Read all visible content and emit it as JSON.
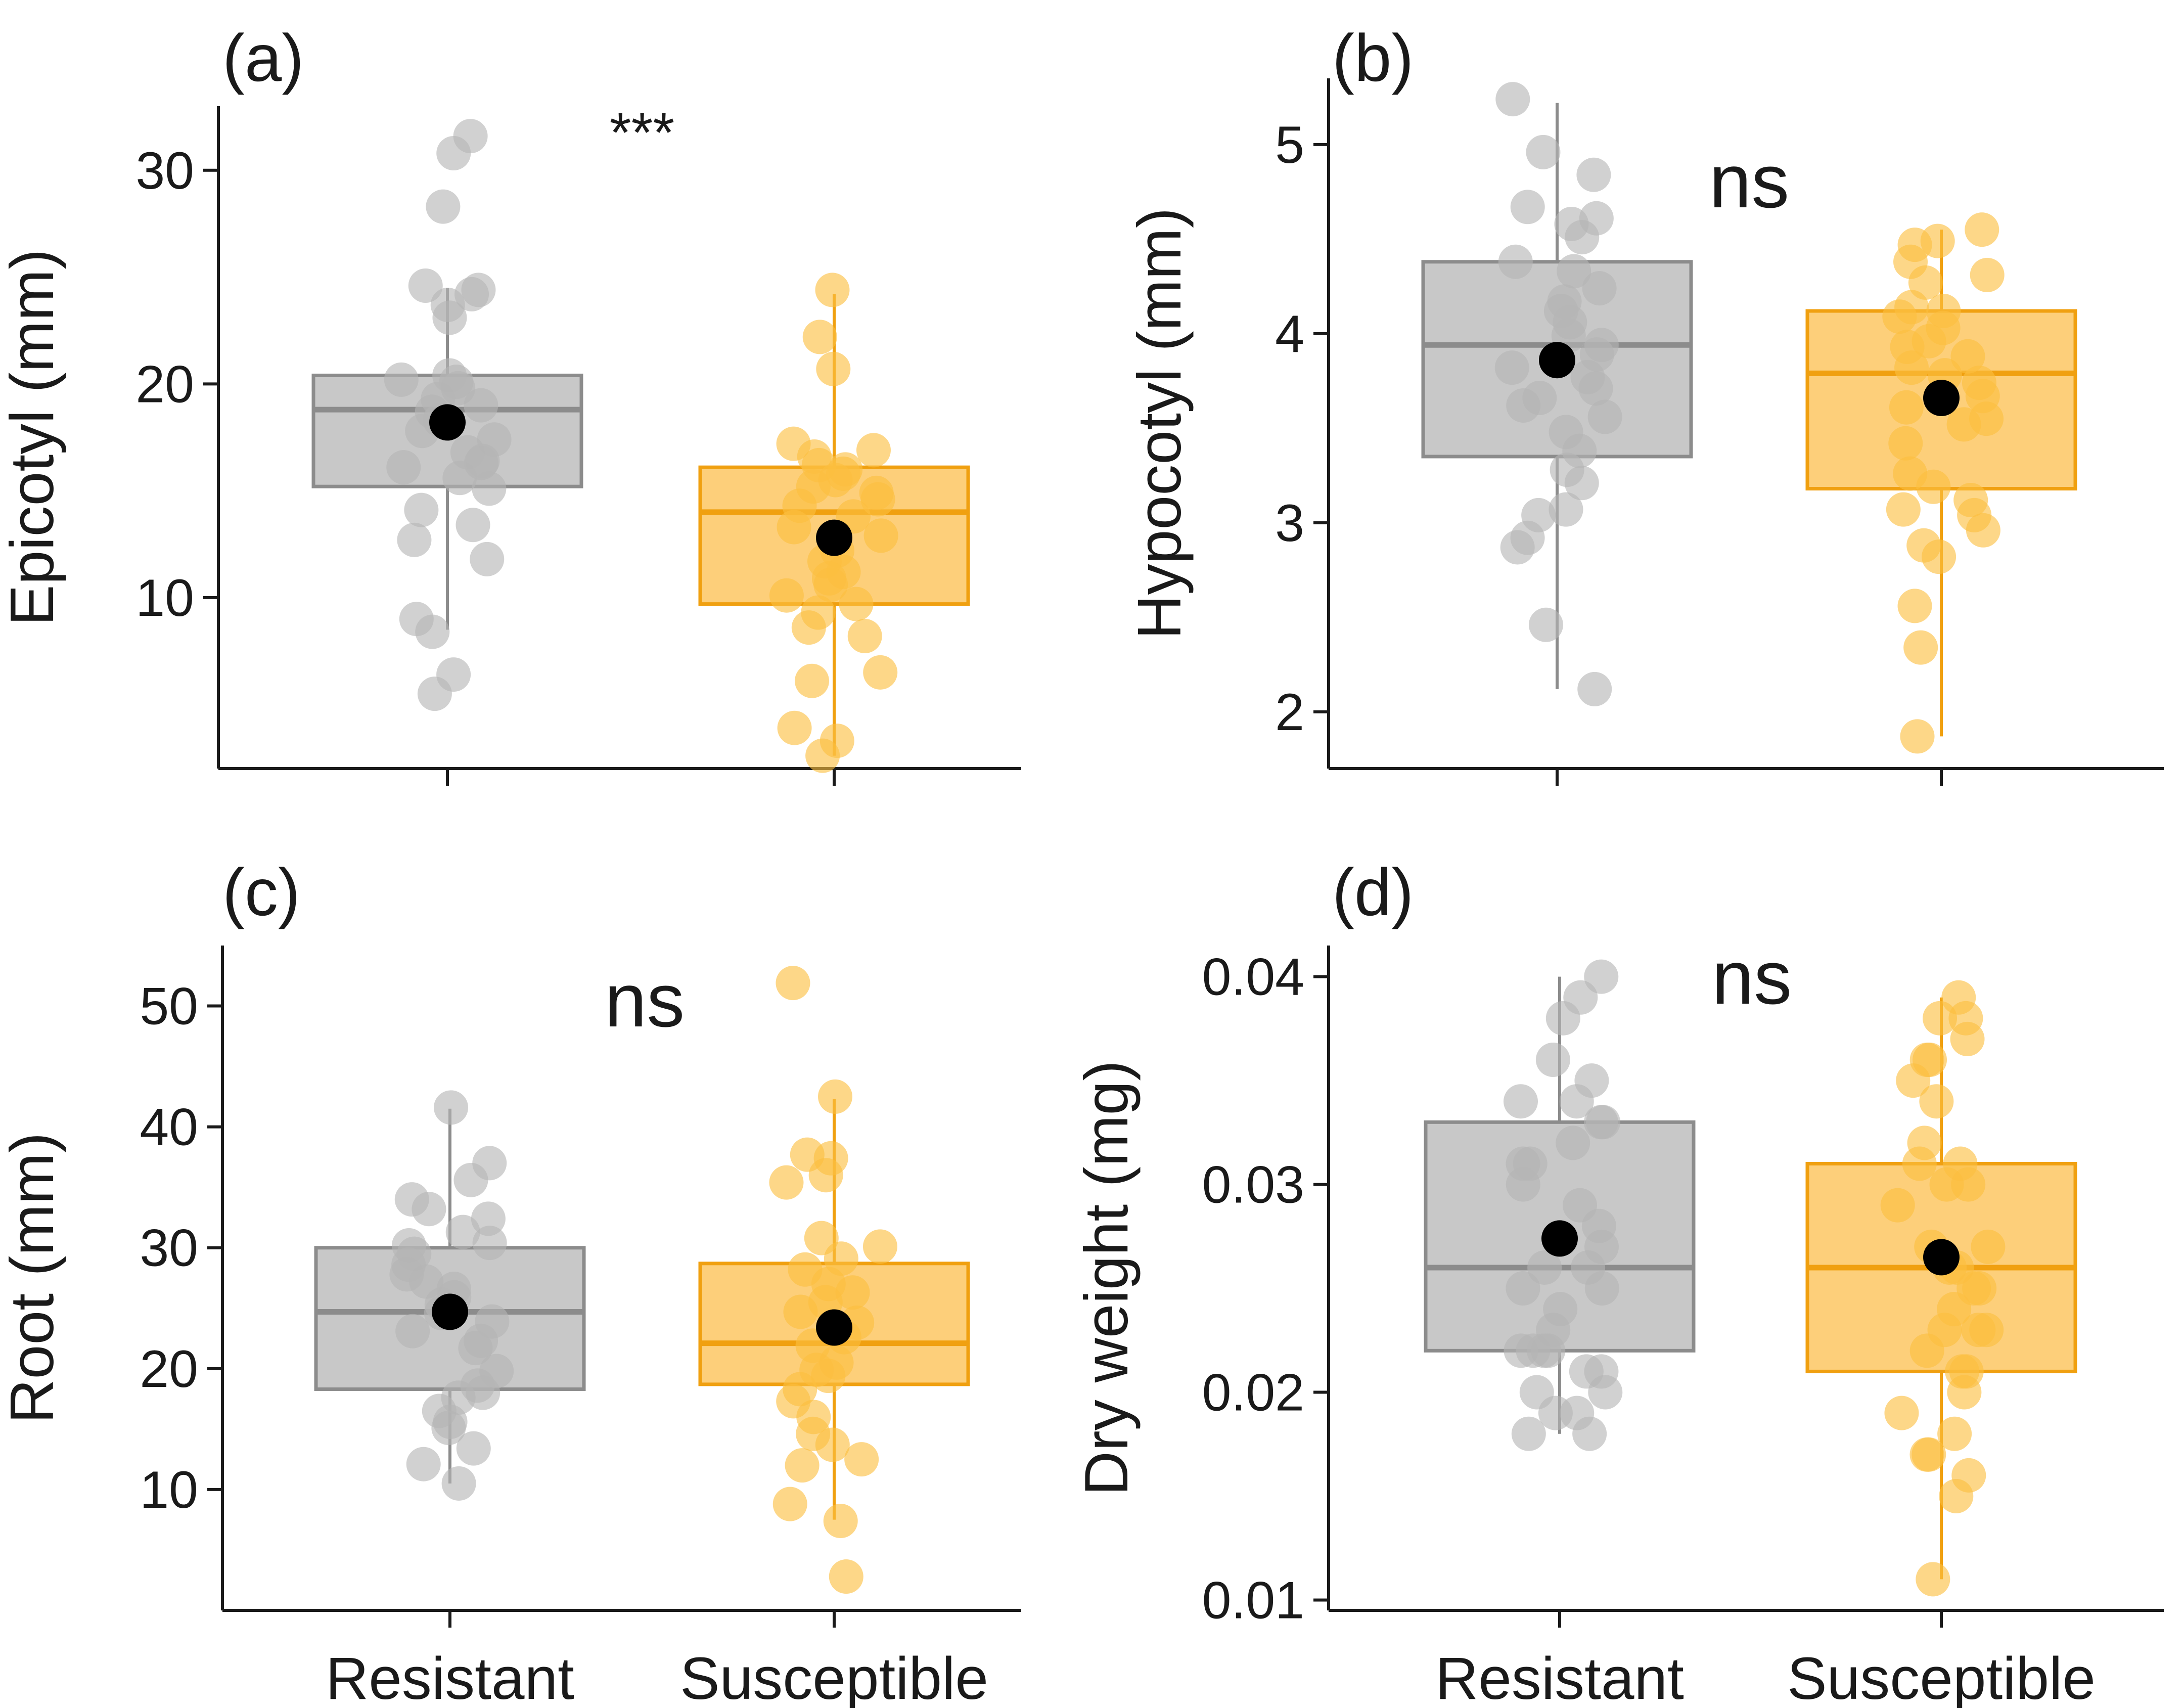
{
  "figure": {
    "colors": {
      "resistant_fill": "#c8c8c8",
      "resistant_line": "#8c8c8c",
      "resistant_point": "#b4b4b4",
      "susceptible_fill": "#fdcf7a",
      "susceptible_line": "#f0a010",
      "susceptible_point": "#fbbf3f",
      "mean_point": "#000000",
      "axis": "#1a1a1a"
    }
  },
  "chart_data": [
    {
      "type": "box",
      "panel_label": "(a)",
      "significance": "***",
      "ylabel": "Epicotyl (mm)",
      "ylim": [
        2,
        33
      ],
      "yticks": [
        10,
        20,
        30
      ],
      "categories": [
        "Resistant",
        "Susceptible"
      ],
      "show_category_labels": false,
      "groups": [
        {
          "name": "Resistant",
          "box": {
            "q1": 15.2,
            "median": 18.8,
            "q3": 20.4,
            "whisker_low": 8.5,
            "whisker_high": 24.5
          },
          "mean": 18.2,
          "points": [
            31.6,
            30.8,
            28.3,
            24.6,
            24.4,
            24.2,
            23.7,
            23.1,
            20.4,
            20.2,
            20.1,
            19.8,
            19.3,
            19.0,
            18.7,
            18.3,
            17.8,
            17.4,
            16.8,
            16.4,
            16.3,
            16.1,
            15.6,
            15.1,
            14.1,
            13.4,
            12.7,
            11.8,
            9.0,
            8.4,
            6.4,
            5.5
          ]
        },
        {
          "name": "Susceptible",
          "box": {
            "q1": 9.7,
            "median": 14.0,
            "q3": 16.1,
            "whisker_low": 2.6,
            "whisker_high": 24.2
          },
          "mean": 12.8,
          "points": [
            24.4,
            22.2,
            20.7,
            17.2,
            16.9,
            16.6,
            16.2,
            16.0,
            15.8,
            15.5,
            15.2,
            14.9,
            14.6,
            14.3,
            13.8,
            13.3,
            12.9,
            12.2,
            11.7,
            11.2,
            10.9,
            10.6,
            10.1,
            9.7,
            9.3,
            8.6,
            8.2,
            6.5,
            6.1,
            3.9,
            3.3,
            2.6
          ]
        }
      ]
    },
    {
      "type": "box",
      "panel_label": "(b)",
      "significance": "ns",
      "ylabel": "Hypocotyl (mm)",
      "ylim": [
        1.7,
        5.35
      ],
      "yticks": [
        2,
        3,
        4,
        5
      ],
      "categories": [
        "Resistant",
        "Susceptible"
      ],
      "show_category_labels": false,
      "groups": [
        {
          "name": "Resistant",
          "box": {
            "q1": 3.35,
            "median": 3.94,
            "q3": 4.38,
            "whisker_low": 2.12,
            "whisker_high": 5.22
          },
          "mean": 3.86,
          "points": [
            5.24,
            4.96,
            4.84,
            4.67,
            4.61,
            4.58,
            4.51,
            4.38,
            4.33,
            4.24,
            4.17,
            4.12,
            4.06,
            3.99,
            3.94,
            3.89,
            3.82,
            3.77,
            3.71,
            3.66,
            3.62,
            3.56,
            3.48,
            3.38,
            3.28,
            3.21,
            3.07,
            3.04,
            2.92,
            2.87,
            2.46,
            2.12
          ]
        },
        {
          "name": "Susceptible",
          "box": {
            "q1": 3.18,
            "median": 3.79,
            "q3": 4.12,
            "whisker_low": 1.87,
            "whisker_high": 4.55
          },
          "mean": 3.66,
          "points": [
            4.55,
            4.49,
            4.47,
            4.38,
            4.31,
            4.27,
            4.14,
            4.12,
            4.09,
            4.03,
            3.96,
            3.93,
            3.88,
            3.82,
            3.78,
            3.74,
            3.67,
            3.61,
            3.55,
            3.52,
            3.42,
            3.26,
            3.19,
            3.12,
            3.07,
            3.04,
            2.96,
            2.88,
            2.82,
            2.56,
            2.34,
            1.87
          ]
        }
      ]
    },
    {
      "type": "box",
      "panel_label": "(c)",
      "significance": "ns",
      "ylabel": "Root (mm)",
      "ylim": [
        0,
        55
      ],
      "yticks": [
        10,
        20,
        30,
        40,
        50
      ],
      "categories": [
        "Resistant",
        "Susceptible"
      ],
      "show_category_labels": true,
      "groups": [
        {
          "name": "Resistant",
          "box": {
            "q1": 18.3,
            "median": 24.7,
            "q3": 30.0,
            "whisker_low": 10.5,
            "whisker_high": 41.5
          },
          "mean": 24.7,
          "points": [
            41.6,
            37.0,
            35.6,
            34.0,
            33.2,
            32.4,
            31.3,
            30.4,
            30.2,
            29.5,
            28.6,
            27.8,
            27.2,
            26.6,
            25.9,
            25.3,
            24.6,
            23.9,
            23.1,
            22.3,
            21.7,
            19.8,
            18.6,
            18.0,
            17.6,
            16.5,
            15.6,
            15.1,
            13.4,
            12.1,
            10.5
          ]
        },
        {
          "name": "Susceptible",
          "box": {
            "q1": 18.7,
            "median": 22.1,
            "q3": 28.7,
            "whisker_low": 7.5,
            "whisker_high": 42.3
          },
          "mean": 23.4,
          "points": [
            51.9,
            42.5,
            37.7,
            37.4,
            36.0,
            35.4,
            30.8,
            30.1,
            29.1,
            28.2,
            27.0,
            26.3,
            25.5,
            24.7,
            23.8,
            22.6,
            21.9,
            20.5,
            19.9,
            19.4,
            18.3,
            17.3,
            16.0,
            14.6,
            13.7,
            12.5,
            12.0,
            8.8,
            7.4,
            2.8
          ]
        }
      ]
    },
    {
      "type": "box",
      "panel_label": "(d)",
      "significance": "ns",
      "ylabel": "Dry weight (mg)",
      "ylim": [
        0.0095,
        0.0415
      ],
      "yticks": [
        0.01,
        0.02,
        0.03,
        0.04
      ],
      "tick_format": "0.00",
      "categories": [
        "Resistant",
        "Susceptible"
      ],
      "show_category_labels": true,
      "groups": [
        {
          "name": "Resistant",
          "box": {
            "q1": 0.022,
            "median": 0.026,
            "q3": 0.033,
            "whisker_low": 0.018,
            "whisker_high": 0.04
          },
          "mean": 0.0274,
          "points": [
            0.04,
            0.039,
            0.038,
            0.036,
            0.035,
            0.034,
            0.034,
            0.033,
            0.033,
            0.032,
            0.031,
            0.031,
            0.03,
            0.029,
            0.028,
            0.027,
            0.026,
            0.026,
            0.025,
            0.025,
            0.024,
            0.023,
            0.022,
            0.022,
            0.022,
            0.022,
            0.021,
            0.021,
            0.02,
            0.02,
            0.019,
            0.019,
            0.018,
            0.018
          ]
        },
        {
          "name": "Susceptible",
          "box": {
            "q1": 0.021,
            "median": 0.026,
            "q3": 0.031,
            "whisker_low": 0.011,
            "whisker_high": 0.039
          },
          "mean": 0.0265,
          "points": [
            0.039,
            0.038,
            0.038,
            0.037,
            0.036,
            0.036,
            0.035,
            0.034,
            0.032,
            0.031,
            0.031,
            0.03,
            0.03,
            0.029,
            0.027,
            0.027,
            0.026,
            0.026,
            0.025,
            0.025,
            0.024,
            0.023,
            0.023,
            0.023,
            0.022,
            0.021,
            0.021,
            0.02,
            0.019,
            0.018,
            0.017,
            0.017,
            0.016,
            0.015,
            0.011
          ]
        }
      ]
    }
  ]
}
